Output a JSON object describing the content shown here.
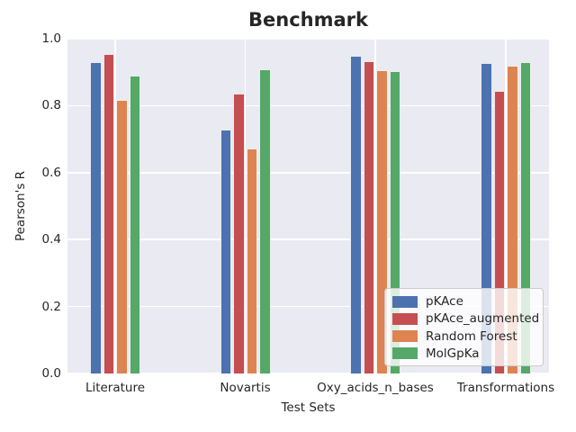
{
  "chart_data": {
    "type": "bar",
    "title": "Benchmark",
    "xlabel": "Test Sets",
    "ylabel": "Pearson's R",
    "categories": [
      "Literature",
      "Novartis",
      "Oxy_acids_n_bases",
      "Transformations"
    ],
    "series": [
      {
        "name": "pKAce",
        "color": "#4C72B0",
        "values": [
          0.93,
          0.728,
          0.949,
          0.927
        ]
      },
      {
        "name": "pKAce_augmented",
        "color": "#C44E52",
        "values": [
          0.953,
          0.837,
          0.932,
          0.843
        ]
      },
      {
        "name": "Random Forest",
        "color": "#DD8452",
        "values": [
          0.816,
          0.673,
          0.905,
          0.919
        ]
      },
      {
        "name": "MolGpKa",
        "color": "#55A868",
        "values": [
          0.889,
          0.909,
          0.903,
          0.93
        ]
      }
    ],
    "ylim": [
      0.0,
      1.0
    ],
    "yticks": [
      "0.0",
      "0.2",
      "0.4",
      "0.6",
      "0.8",
      "1.0"
    ],
    "grid": "on",
    "legend_position": "lower right",
    "plot_background_color": "#EAEAF2",
    "gridline_color": "#FFFFFF",
    "text_color": "#262626"
  }
}
